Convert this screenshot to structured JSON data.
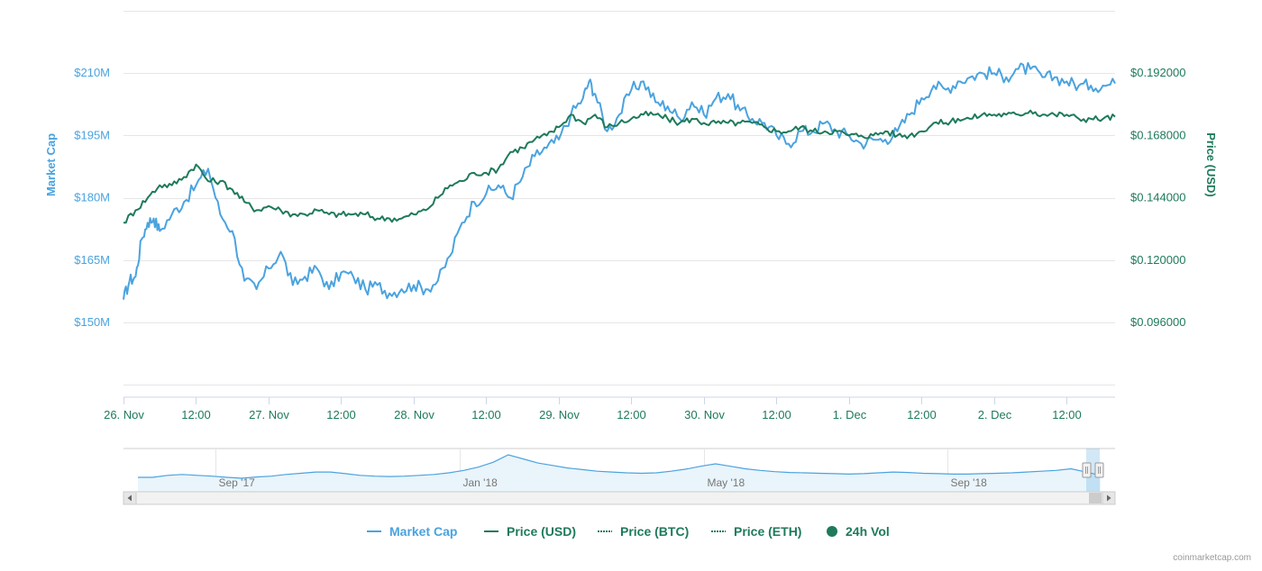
{
  "colors": {
    "market_cap": "#4aa3df",
    "price_usd": "#1e7a5a",
    "price_btc": "#1e7a5a",
    "price_eth": "#1e7a5a",
    "vol": "#1e7a5a",
    "grid": "#e6e6e6"
  },
  "credits": "coinmarketcap.com",
  "chart_data": {
    "type": "line",
    "x_range": [
      "26. Nov 00:00",
      "2. Dec 20:00"
    ],
    "x_tick_labels": [
      "26. Nov",
      "12:00",
      "27. Nov",
      "12:00",
      "28. Nov",
      "12:00",
      "29. Nov",
      "12:00",
      "30. Nov",
      "12:00",
      "1. Dec",
      "12:00",
      "2. Dec",
      "12:00"
    ],
    "x_tick_hours": [
      0,
      12,
      24,
      36,
      48,
      60,
      72,
      84,
      96,
      108,
      120,
      132,
      144,
      156
    ],
    "x_max_hours": 164,
    "y_left": {
      "title": "Market Cap",
      "tick_labels": [
        "$150M",
        "$165M",
        "$180M",
        "$195M",
        "$210M"
      ],
      "ticks": [
        150,
        165,
        180,
        195,
        210
      ],
      "range": [
        132,
        225
      ]
    },
    "y_right": {
      "title": "Price (USD)",
      "tick_labels": [
        "$0.096000",
        "$0.120000",
        "$0.144000",
        "$0.168000",
        "$0.192000"
      ],
      "ticks": [
        0.096,
        0.12,
        0.144,
        0.168,
        0.192
      ],
      "range": [
        0.0672,
        0.216
      ]
    },
    "series": [
      {
        "name": "Market Cap",
        "axis": "left",
        "x_hours": [
          0,
          1,
          2,
          3,
          4,
          5,
          6,
          8,
          10,
          12,
          14,
          16,
          18,
          20,
          22,
          24,
          26,
          28,
          30,
          32,
          34,
          36,
          38,
          40,
          42,
          44,
          46,
          48,
          50,
          52,
          54,
          56,
          58,
          60,
          62,
          64,
          66,
          68,
          70,
          72,
          74,
          76,
          77,
          78,
          80,
          82,
          84,
          86,
          88,
          90,
          92,
          94,
          96,
          98,
          100,
          102,
          104,
          106,
          108,
          110,
          112,
          114,
          116,
          118,
          120,
          122,
          124,
          126,
          128,
          130,
          132,
          134,
          136,
          138,
          140,
          142,
          144,
          146,
          148,
          150,
          152,
          154,
          156,
          158,
          160,
          162,
          164
        ],
        "values": [
          155.5,
          160,
          161,
          170,
          174,
          175,
          172,
          176,
          179,
          183,
          187,
          176,
          172,
          160,
          158,
          163,
          167,
          159,
          161,
          163,
          158,
          162,
          161,
          158,
          159,
          157,
          158,
          159,
          158,
          160,
          166,
          174,
          179,
          181,
          183,
          180,
          185,
          190,
          192,
          194,
          200,
          204,
          208,
          205,
          196,
          200,
          206,
          208,
          203,
          202,
          199,
          203,
          200,
          204,
          205,
          201,
          199,
          198,
          195,
          193,
          196,
          196,
          198,
          196,
          195,
          193,
          194,
          194,
          196,
          200,
          204,
          207,
          206,
          208,
          209,
          210,
          210,
          209,
          211,
          211,
          209,
          209,
          208,
          207,
          207,
          207,
          207.5
        ]
      },
      {
        "name": "Price (USD)",
        "axis": "left",
        "x_hours": [
          0,
          2,
          4,
          6,
          8,
          10,
          12,
          14,
          16,
          18,
          20,
          22,
          24,
          26,
          28,
          30,
          32,
          34,
          36,
          38,
          40,
          42,
          44,
          46,
          48,
          50,
          52,
          54,
          56,
          58,
          60,
          62,
          64,
          66,
          68,
          70,
          72,
          74,
          76,
          78,
          80,
          82,
          84,
          86,
          88,
          90,
          92,
          94,
          96,
          98,
          100,
          102,
          104,
          106,
          108,
          110,
          112,
          114,
          116,
          118,
          120,
          122,
          124,
          126,
          128,
          130,
          132,
          134,
          136,
          138,
          140,
          142,
          144,
          146,
          148,
          150,
          152,
          154,
          156,
          158,
          160,
          162,
          164
        ],
        "values": [
          174,
          177,
          180,
          183,
          183,
          185,
          188,
          184,
          184,
          182,
          179,
          177,
          178,
          177,
          176,
          176,
          177,
          176,
          176,
          176,
          176,
          175,
          175,
          175,
          176,
          177,
          180,
          183,
          184,
          186,
          186,
          187,
          191,
          192,
          194,
          195,
          197,
          200,
          198,
          200,
          197,
          198,
          199,
          200,
          200,
          199,
          198,
          199,
          198,
          198,
          198,
          198,
          198,
          197,
          196,
          196,
          197,
          196,
          196,
          196,
          195,
          195,
          195,
          196,
          195,
          195,
          196,
          198,
          198,
          199,
          199,
          200,
          200,
          200,
          200,
          201,
          200,
          200,
          200,
          199,
          199,
          199,
          199.5
        ]
      },
      {
        "name": "Price (BTC)",
        "axis": "left",
        "visible": false,
        "x_hours": [],
        "values": []
      },
      {
        "name": "Price (ETH)",
        "axis": "left",
        "visible": false,
        "x_hours": [],
        "values": []
      },
      {
        "name": "24h Vol",
        "axis": "left",
        "visible": false,
        "x_hours": [],
        "values": []
      }
    ],
    "navigator": {
      "tick_labels": [
        "Sep '17",
        "Jan '18",
        "May '18",
        "Sep '18"
      ],
      "tick_positions": [
        0.093,
        0.339,
        0.585,
        0.831
      ],
      "values": [
        0.35,
        0.35,
        0.4,
        0.42,
        0.4,
        0.38,
        0.35,
        0.33,
        0.36,
        0.38,
        0.42,
        0.45,
        0.48,
        0.48,
        0.44,
        0.4,
        0.38,
        0.37,
        0.38,
        0.4,
        0.42,
        0.46,
        0.52,
        0.6,
        0.72,
        0.9,
        0.8,
        0.7,
        0.64,
        0.58,
        0.54,
        0.5,
        0.48,
        0.46,
        0.45,
        0.46,
        0.5,
        0.55,
        0.62,
        0.68,
        0.62,
        0.56,
        0.52,
        0.49,
        0.47,
        0.46,
        0.45,
        0.44,
        0.43,
        0.44,
        0.46,
        0.48,
        0.47,
        0.45,
        0.44,
        0.43,
        0.43,
        0.44,
        0.45,
        0.46,
        0.48,
        0.5,
        0.52,
        0.56,
        0.48,
        0.4
      ]
    },
    "legend": {
      "position": "bottom-center",
      "items": [
        "Market Cap",
        "Price (USD)",
        "Price (BTC)",
        "Price (ETH)",
        "24h Vol"
      ]
    },
    "grid": true
  }
}
